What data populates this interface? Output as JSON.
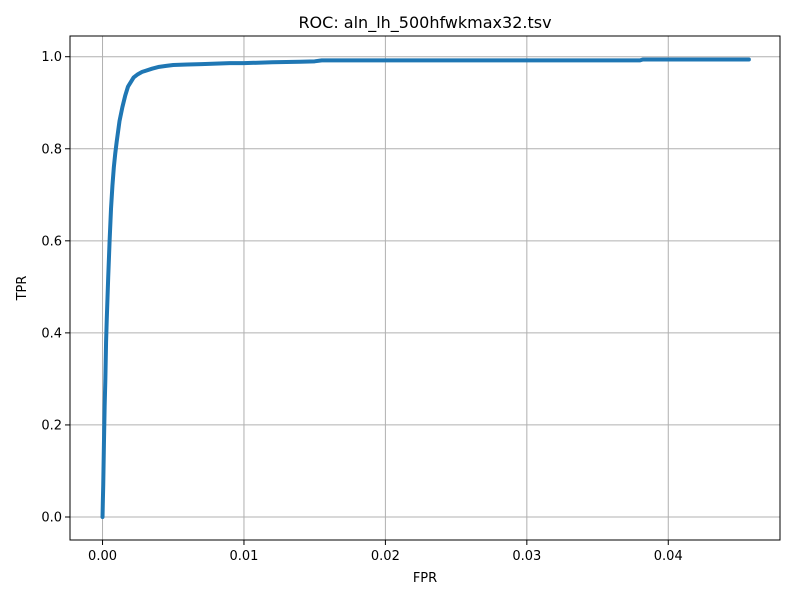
{
  "chart_data": {
    "type": "line",
    "title": "ROC: aln_lh_500hfwkmax32.tsv",
    "xlabel": "FPR",
    "ylabel": "TPR",
    "xlim": [
      -0.0023,
      0.0479
    ],
    "ylim": [
      -0.05,
      1.045
    ],
    "grid": true,
    "legend": "none",
    "colors": {
      "series": "#1f77b4",
      "grid": "#b0b0b0",
      "axes": "#000000"
    },
    "x_ticks": [
      {
        "value": 0.0,
        "label": "0.00"
      },
      {
        "value": 0.01,
        "label": "0.01"
      },
      {
        "value": 0.02,
        "label": "0.02"
      },
      {
        "value": 0.03,
        "label": "0.03"
      },
      {
        "value": 0.04,
        "label": "0.04"
      }
    ],
    "y_ticks": [
      {
        "value": 0.0,
        "label": "0.0"
      },
      {
        "value": 0.2,
        "label": "0.2"
      },
      {
        "value": 0.4,
        "label": "0.4"
      },
      {
        "value": 0.6,
        "label": "0.6"
      },
      {
        "value": 0.8,
        "label": "0.8"
      },
      {
        "value": 1.0,
        "label": "1.0"
      }
    ],
    "series": [
      {
        "x": [
          0.0,
          2e-05,
          5e-05,
          0.0001,
          0.00015,
          0.0002,
          0.00025,
          0.0003,
          0.0004,
          0.0005,
          0.0006,
          0.0007,
          0.0008,
          0.0009,
          0.001,
          0.0012,
          0.0014,
          0.0016,
          0.0018,
          0.002,
          0.0022,
          0.0025,
          0.0028,
          0.003,
          0.0035,
          0.004,
          0.0045,
          0.005,
          0.006,
          0.007,
          0.008,
          0.009,
          0.01,
          0.012,
          0.014,
          0.015,
          0.0155,
          0.02,
          0.025,
          0.03,
          0.035,
          0.038,
          0.0382,
          0.04,
          0.0457
        ],
        "y": [
          0.0,
          0.03,
          0.07,
          0.16,
          0.24,
          0.3,
          0.38,
          0.43,
          0.52,
          0.6,
          0.67,
          0.72,
          0.76,
          0.79,
          0.815,
          0.86,
          0.89,
          0.915,
          0.935,
          0.945,
          0.955,
          0.962,
          0.967,
          0.969,
          0.974,
          0.978,
          0.98,
          0.982,
          0.983,
          0.984,
          0.985,
          0.986,
          0.986,
          0.988,
          0.989,
          0.99,
          0.992,
          0.992,
          0.992,
          0.992,
          0.992,
          0.992,
          0.994,
          0.994,
          0.994
        ]
      }
    ]
  }
}
